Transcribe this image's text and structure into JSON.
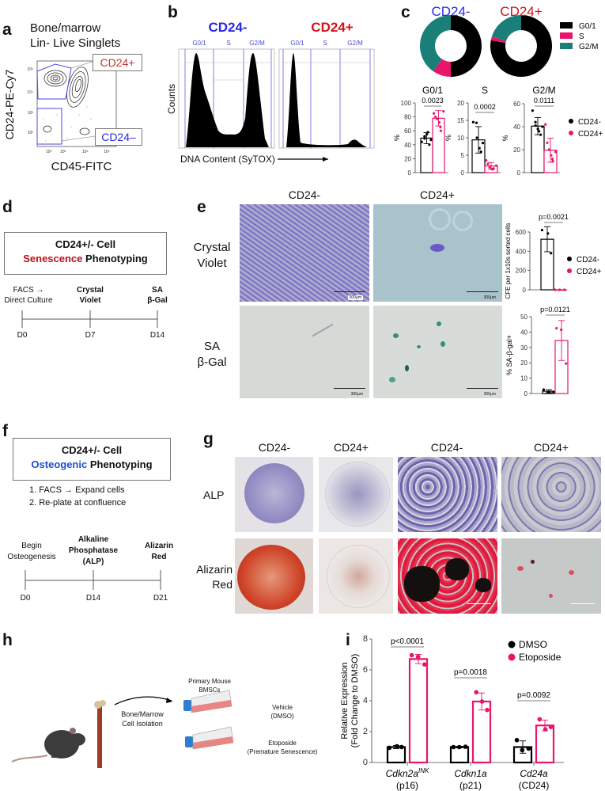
{
  "panel_labels": {
    "a": "a",
    "b": "b",
    "c": "c",
    "d": "d",
    "e": "e",
    "f": "f",
    "g": "g",
    "h": "h",
    "i": "i"
  },
  "colors": {
    "cd24_neg_blue": "#2a2ae0",
    "cd24_pos_red": "#d0141e",
    "black": "#000000",
    "magenta": "#e8156b",
    "teal": "#1b7f79",
    "senescence_red": "#b8141c",
    "osteogenic_blue": "#1f4fc8"
  },
  "panel_a": {
    "title_line1": "Bone/marrow",
    "title_line2": "Lin- Live Singlets",
    "y_label": "CD24-PE-Cy7",
    "x_label": "CD45-FITC",
    "gate_pos": "CD24+",
    "gate_neg": "CD24–",
    "x_ticks": [
      "10²",
      "10³",
      "10⁴",
      "10⁵"
    ],
    "y_ticks": [
      "10⁵",
      "10⁴",
      "10³",
      "10²"
    ]
  },
  "panel_b": {
    "title_neg": "CD24-",
    "title_pos": "CD24+",
    "gates": [
      "G0/1",
      "S",
      "G2/M"
    ],
    "y_label": "Counts",
    "x_label": "DNA Content (SyTOX)"
  },
  "panel_d": {
    "box_line1": "CD24+/- Cell",
    "box_word_colored": "Senescence",
    "box_word_rest": "Phenotyping",
    "steps": [
      {
        "line1": "FACS →",
        "line2": "Direct Culture",
        "day": "D0"
      },
      {
        "line1": "Crystal",
        "line2": "Violet",
        "day": "D7"
      },
      {
        "line1": "SA",
        "line2": "β-Gal",
        "day": "D14"
      }
    ]
  },
  "panel_e": {
    "col_headers": [
      "CD24-",
      "CD24+"
    ],
    "row_labels": [
      {
        "line1": "Crystal",
        "line2": "Violet"
      },
      {
        "line1": "SA",
        "line2": "β-Gal"
      }
    ],
    "scale_bar": "300μm"
  },
  "panel_f": {
    "box_line1": "CD24+/- Cell",
    "box_word_colored": "Osteogenic",
    "box_word_rest": "Phenotyping",
    "list": [
      "1.  FACS → Expand cells",
      "2.  Re-plate at confluence"
    ],
    "steps": [
      {
        "lines": [
          "Begin",
          "Osteogenesis"
        ],
        "day": "D0"
      },
      {
        "lines": [
          "Alkaline",
          "Phosphatase",
          "(ALP)"
        ],
        "day": "D14"
      },
      {
        "lines": [
          "Alizarin",
          "Red"
        ],
        "day": "D21"
      }
    ]
  },
  "panel_g": {
    "col_headers": [
      "CD24-",
      "CD24+",
      "CD24-",
      "CD24+"
    ],
    "row_labels": [
      {
        "line1": "ALP",
        "line2": ""
      },
      {
        "line1": "Alizarin",
        "line2": "Red"
      }
    ]
  },
  "panel_h": {
    "arrow_label_line1": "Bone/Marrow",
    "arrow_label_line2": "Cell Isolation",
    "cells_line1": "Primary Mouse",
    "cells_line2": "BMSCs",
    "vehicle_line1": "Vehicle",
    "vehicle_line2": "(DMSO)",
    "treatment_line1": "Etoposide",
    "treatment_line2": "(Premature Senescence)"
  },
  "chart_data": [
    {
      "type": "pie",
      "variant": "donut",
      "legend": [
        "G0/1",
        "S",
        "G2/M"
      ],
      "legend_placement": "right",
      "colors": [
        "#000000",
        "#e8156b",
        "#1b7f79"
      ],
      "series": [
        {
          "name": "CD24-",
          "values": [
            50,
            9.5,
            40.5
          ]
        },
        {
          "name": "CD24+",
          "values": [
            78,
            2,
            20
          ]
        }
      ]
    },
    {
      "type": "bar",
      "title": "G0/1",
      "ylabel": "%",
      "ylim": [
        0,
        100
      ],
      "yticks": [
        "0",
        "20",
        "40",
        "60",
        "80",
        "100"
      ],
      "series": [
        {
          "name": "CD24-",
          "values": [
            49.5
          ],
          "sd": [
            8
          ],
          "points": [
            [
              44,
              49,
              52,
              55,
              58,
              40,
              47
            ]
          ],
          "color": "#000000"
        },
        {
          "name": "CD24+",
          "values": [
            78
          ],
          "sd": [
            11
          ],
          "points": [
            [
              85,
              80,
              77,
              72,
              65,
              60,
              88
            ]
          ],
          "color": "#e8156b"
        }
      ],
      "pvalues": [
        "0.0023"
      ]
    },
    {
      "type": "bar",
      "title": "S",
      "ylabel": "%",
      "ylim": [
        0,
        20
      ],
      "yticks": [
        "0",
        "5",
        "10",
        "15",
        "20"
      ],
      "series": [
        {
          "name": "CD24-",
          "values": [
            9.4
          ],
          "sd": [
            3.8
          ],
          "points": [
            [
              14.5,
              14.3,
              10,
              7,
              6,
              8.5
            ]
          ],
          "color": "#000000"
        },
        {
          "name": "CD24+",
          "values": [
            1.9
          ],
          "sd": [
            1
          ],
          "points": [
            [
              3.5,
              2.5,
              1.5,
              1,
              1,
              1.2,
              2
            ]
          ],
          "color": "#e8156b"
        }
      ],
      "pvalues": [
        "0.0002"
      ],
      "legend_placement": "right"
    },
    {
      "type": "bar",
      "title": "G2/M",
      "ylabel": "%",
      "ylim": [
        0,
        60
      ],
      "yticks": [
        "0",
        "20",
        "40",
        "60"
      ],
      "series": [
        {
          "name": "CD24-",
          "values": [
            40.5
          ],
          "sd": [
            7.5
          ],
          "points": [
            [
              54,
              44,
              41,
              38,
              36,
              33,
              40
            ]
          ],
          "color": "#000000"
        },
        {
          "name": "CD24+",
          "values": [
            19.5
          ],
          "sd": [
            10.5
          ],
          "points": [
            [
              42,
              26,
              20,
              15,
              12,
              10,
              18
            ]
          ],
          "color": "#e8156b"
        }
      ],
      "pvalues": [
        "0.0111"
      ]
    },
    {
      "type": "bar",
      "ylabel": "CFE per 1x10s sorted cells",
      "ylim": [
        0,
        600
      ],
      "yticks": [
        "0",
        "200",
        "400",
        "600"
      ],
      "series": [
        {
          "name": "CD24-",
          "values": [
            525
          ],
          "sd": [
            130
          ],
          "points": [
            [
              620,
              585,
              380
            ]
          ],
          "color": "#000000"
        },
        {
          "name": "CD24+",
          "values": [
            0
          ],
          "sd": [
            0
          ],
          "points": [
            [
              0,
              0,
              0
            ]
          ],
          "color": "#e8156b"
        }
      ],
      "pvalues": [
        "p=0.0021"
      ],
      "legend_placement": "right"
    },
    {
      "type": "bar",
      "ylabel": "% SA-β-gal+",
      "ylim": [
        0,
        50
      ],
      "yticks": [
        "0",
        "10",
        "20",
        "30",
        "40",
        "50"
      ],
      "series": [
        {
          "name": "CD24-",
          "values": [
            1.5
          ],
          "sd": [
            1
          ],
          "points": [
            [
              2.5,
              1,
              0.5,
              1
            ]
          ],
          "color": "#000000"
        },
        {
          "name": "CD24+",
          "values": [
            34.5
          ],
          "sd": [
            13
          ],
          "points": [
            [
              42.5,
              41.5,
              19.5
            ]
          ],
          "color": "#e8156b"
        }
      ],
      "pvalues": [
        "p=0.0121"
      ]
    },
    {
      "type": "bar",
      "ylabel": "Relative Expression",
      "ylabel2": "(Fold Change to DMSO)",
      "ylim": [
        0,
        8
      ],
      "yticks": [
        "0",
        "2",
        "4",
        "6",
        "8"
      ],
      "categories": [
        {
          "gene": "Cdkn2a",
          "sup": "INK",
          "protein": "(p16)"
        },
        {
          "gene": "Cdkn1a",
          "sup": "",
          "protein": "(p21)"
        },
        {
          "gene": "Cd24a",
          "sup": "",
          "protein": "(CD24)"
        }
      ],
      "series": [
        {
          "name": "DMSO",
          "values": [
            1,
            1,
            1
          ],
          "sd": [
            0.1,
            0.05,
            0.4
          ],
          "points": [
            [
              0.95,
              1.05,
              1.0
            ],
            [
              1.0,
              1.0,
              1.02
            ],
            [
              1.45,
              0.8,
              0.9
            ]
          ],
          "color": "#000000"
        },
        {
          "name": "Etoposide",
          "values": [
            6.7,
            3.95,
            2.4
          ],
          "sd": [
            0.3,
            0.55,
            0.35
          ],
          "points": [
            [
              6.95,
              6.85,
              6.35
            ],
            [
              4.55,
              3.95,
              3.4
            ],
            [
              2.8,
              2.15,
              2.3
            ]
          ],
          "color": "#e8156b"
        }
      ],
      "pvalues": [
        "p<0.0001",
        "p=0.0018",
        "p=0.0092"
      ],
      "legend_placement": "top-right"
    }
  ]
}
